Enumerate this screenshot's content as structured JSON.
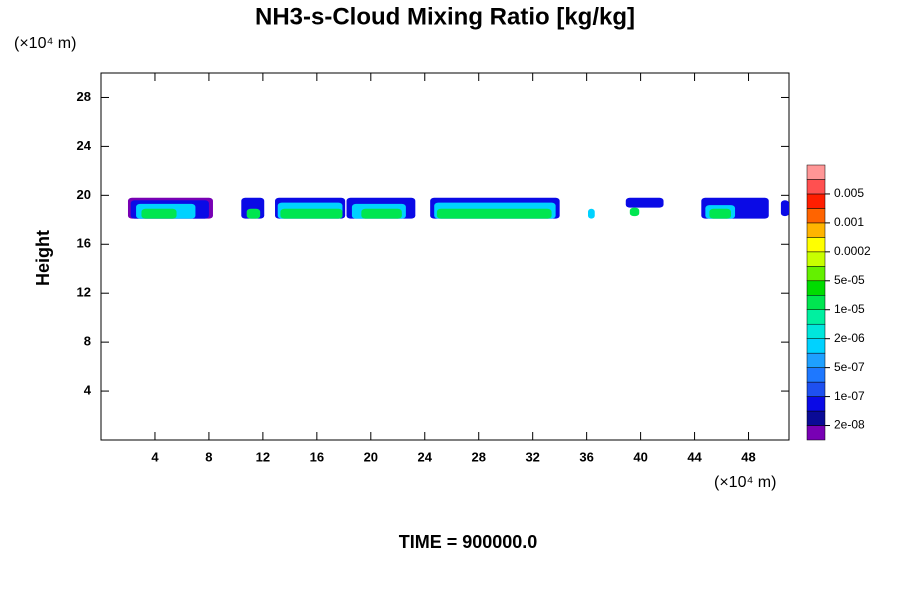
{
  "chart_data": {
    "type": "contour",
    "title": "NH3-s-Cloud Mixing Ratio [kg/kg]",
    "y_unit": "(×10⁴ m)",
    "x_unit": "(×10⁴ m)",
    "ylabel": "Height",
    "footer": "TIME = 900000.0",
    "xlim": [
      0,
      51
    ],
    "ylim": [
      0,
      30
    ],
    "xticks": [
      4,
      8,
      12,
      16,
      20,
      24,
      28,
      32,
      36,
      40,
      44,
      48
    ],
    "yticks": [
      4,
      8,
      12,
      16,
      20,
      24,
      28
    ],
    "colorbar": {
      "colors": [
        "#7800b4",
        "#0a0a96",
        "#0a0ae6",
        "#1e50f0",
        "#1e78ff",
        "#1ea0ff",
        "#00d2ff",
        "#00e6dc",
        "#00f0a0",
        "#00e650",
        "#00dc00",
        "#64f000",
        "#c8ff00",
        "#ffff00",
        "#ffb400",
        "#ff6400",
        "#ff1e00",
        "#ff5050",
        "#ff9696"
      ],
      "ticks": [
        {
          "value": 2e-08,
          "label": "2e-08"
        },
        {
          "value": 1e-07,
          "label": "1e-07"
        },
        {
          "value": 5e-07,
          "label": "5e-07"
        },
        {
          "value": 2e-06,
          "label": "2e-06"
        },
        {
          "value": 1e-05,
          "label": "1e-05"
        },
        {
          "value": 5e-05,
          "label": "5e-05"
        },
        0.0002,
        0.001,
        0.005
      ]
    },
    "cloud": [
      {
        "x": [
          2.0,
          8.3
        ],
        "y": [
          18.1,
          19.8
        ],
        "value": 2e-08,
        "color": "#7800b4"
      },
      {
        "x": [
          2.2,
          8.0
        ],
        "y": [
          18.1,
          19.6
        ],
        "value": 1e-07,
        "color": "#0a0ae6"
      },
      {
        "x": [
          2.6,
          7.0
        ],
        "y": [
          18.1,
          19.3
        ],
        "value": 5e-07,
        "color": "#00d2ff"
      },
      {
        "x": [
          3.0,
          5.6
        ],
        "y": [
          18.1,
          18.9
        ],
        "value": 1e-05,
        "color": "#00e650"
      },
      {
        "x": [
          10.4,
          12.1
        ],
        "y": [
          18.1,
          19.8
        ],
        "value": 1e-07,
        "color": "#0a0ae6"
      },
      {
        "x": [
          10.8,
          11.8
        ],
        "y": [
          18.1,
          18.9
        ],
        "value": 1e-05,
        "color": "#00e650"
      },
      {
        "x": [
          12.9,
          18.1
        ],
        "y": [
          18.1,
          19.8
        ],
        "value": 1e-07,
        "color": "#0a0ae6"
      },
      {
        "x": [
          13.1,
          17.9
        ],
        "y": [
          18.1,
          19.4
        ],
        "value": 5e-07,
        "color": "#00d2ff"
      },
      {
        "x": [
          13.3,
          17.9
        ],
        "y": [
          18.1,
          18.9
        ],
        "value": 1e-05,
        "color": "#00e650"
      },
      {
        "x": [
          18.2,
          23.3
        ],
        "y": [
          18.1,
          19.8
        ],
        "value": 1e-07,
        "color": "#0a0ae6"
      },
      {
        "x": [
          18.6,
          22.6
        ],
        "y": [
          18.1,
          19.3
        ],
        "value": 5e-07,
        "color": "#00d2ff"
      },
      {
        "x": [
          19.3,
          22.3
        ],
        "y": [
          18.1,
          18.9
        ],
        "value": 1e-05,
        "color": "#00e650"
      },
      {
        "x": [
          24.4,
          34.0
        ],
        "y": [
          18.1,
          19.8
        ],
        "value": 1e-07,
        "color": "#0a0ae6"
      },
      {
        "x": [
          24.7,
          33.7
        ],
        "y": [
          18.1,
          19.4
        ],
        "value": 5e-07,
        "color": "#00d2ff"
      },
      {
        "x": [
          24.9,
          33.4
        ],
        "y": [
          18.1,
          18.9
        ],
        "value": 1e-05,
        "color": "#00e650"
      },
      {
        "x": [
          36.1,
          36.6
        ],
        "y": [
          18.1,
          18.9
        ],
        "value": 5e-07,
        "color": "#00d2ff"
      },
      {
        "x": [
          38.9,
          41.7
        ],
        "y": [
          19.0,
          19.8
        ],
        "value": 1e-07,
        "color": "#0a0ae6"
      },
      {
        "x": [
          39.2,
          39.9
        ],
        "y": [
          18.3,
          19.0
        ],
        "value": 1e-05,
        "color": "#00e650"
      },
      {
        "x": [
          44.5,
          49.5
        ],
        "y": [
          18.1,
          19.8
        ],
        "value": 1e-07,
        "color": "#0a0ae6"
      },
      {
        "x": [
          44.8,
          47.0
        ],
        "y": [
          18.1,
          19.2
        ],
        "value": 5e-07,
        "color": "#00d2ff"
      },
      {
        "x": [
          45.1,
          46.7
        ],
        "y": [
          18.1,
          18.9
        ],
        "value": 1e-05,
        "color": "#00e650"
      },
      {
        "x": [
          50.4,
          51.0
        ],
        "y": [
          18.3,
          19.6
        ],
        "value": 1e-07,
        "color": "#0a0ae6"
      }
    ]
  }
}
